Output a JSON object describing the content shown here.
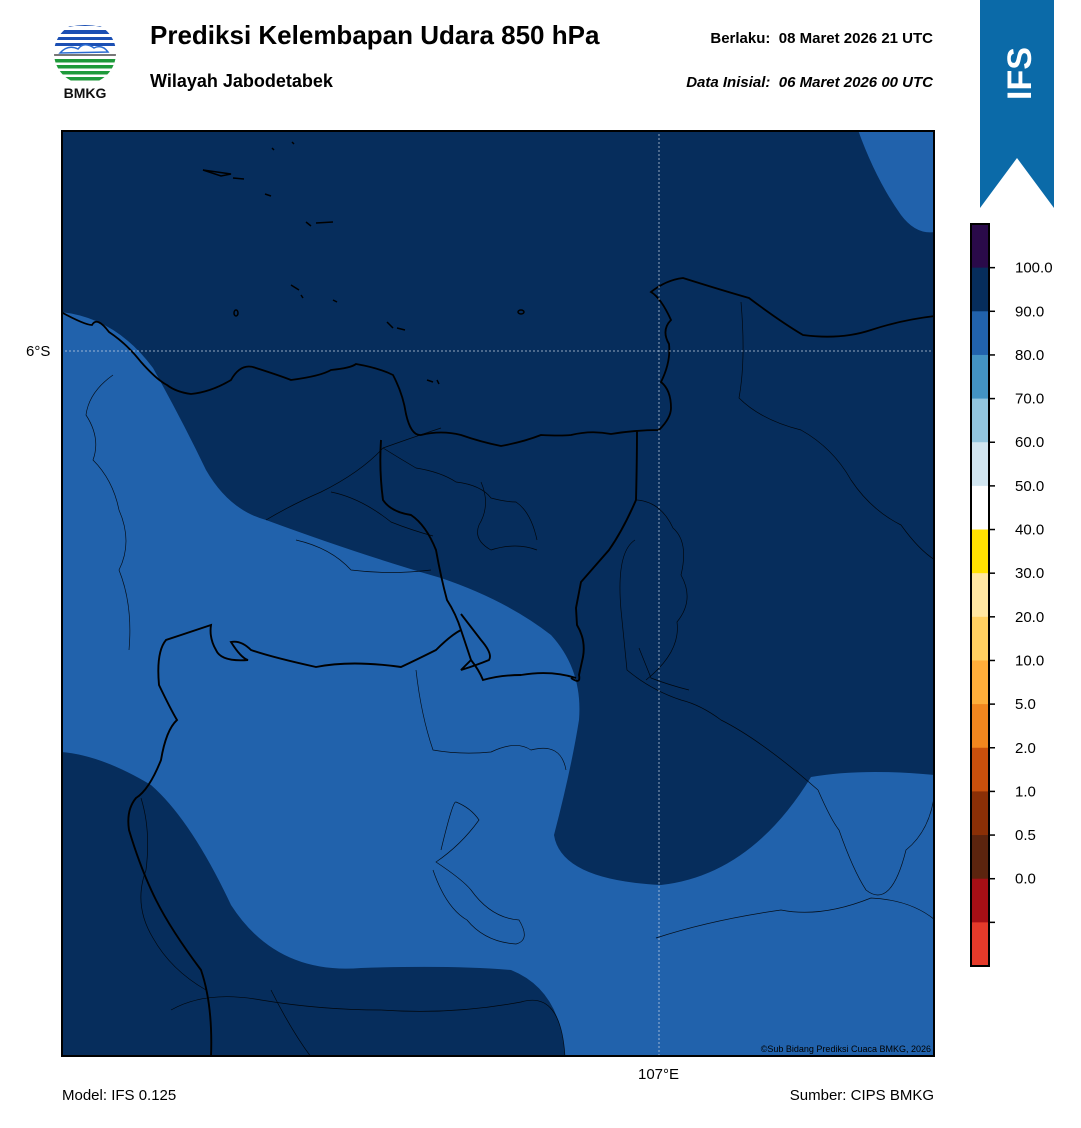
{
  "header": {
    "logo_text": "BMKG",
    "title": "Prediksi Kelembapan Udara 850 hPa",
    "subtitle": "Wilayah Jabodetabek",
    "valid_label": "Berlaku:",
    "valid_value": "08 Maret 2026 21 UTC",
    "init_label": "Data Inisial:",
    "init_value": "06 Maret 2026 00 UTC"
  },
  "badge": {
    "text": "IFS",
    "color": "#0b6aa8"
  },
  "map": {
    "lat_label": "6°S",
    "lon_label": "107°E",
    "copyright": "©Sub Bidang Prediksi Cuaca BMKG, 2026",
    "colors": {
      "very_humid": "#062d5c",
      "humid": "#2162ac"
    }
  },
  "colorbar": {
    "levels": [
      {
        "label": "",
        "color": "#2a0a4a"
      },
      {
        "label": "100.0",
        "color": "#062d5c"
      },
      {
        "label": "90.0",
        "color": "#2162ac"
      },
      {
        "label": "80.0",
        "color": "#4393c3"
      },
      {
        "label": "70.0",
        "color": "#92c5de"
      },
      {
        "label": "60.0",
        "color": "#d1e5f0"
      },
      {
        "label": "50.0",
        "color": "#ffffff"
      },
      {
        "label": "40.0",
        "color": "#ffe000"
      },
      {
        "label": "30.0",
        "color": "#ffe6a0"
      },
      {
        "label": "20.0",
        "color": "#ffd060"
      },
      {
        "label": "10.0",
        "color": "#ffae3a"
      },
      {
        "label": "5.0",
        "color": "#f2861e"
      },
      {
        "label": "2.0",
        "color": "#c9500c"
      },
      {
        "label": "1.0",
        "color": "#8b2f06"
      },
      {
        "label": "0.5",
        "color": "#5c240e"
      },
      {
        "label": "0.0",
        "color": "#a50f15"
      },
      {
        "label": "",
        "color": "#e43a2a"
      }
    ]
  },
  "footer": {
    "model": "Model: IFS 0.125",
    "source": "Sumber: CIPS BMKG"
  }
}
